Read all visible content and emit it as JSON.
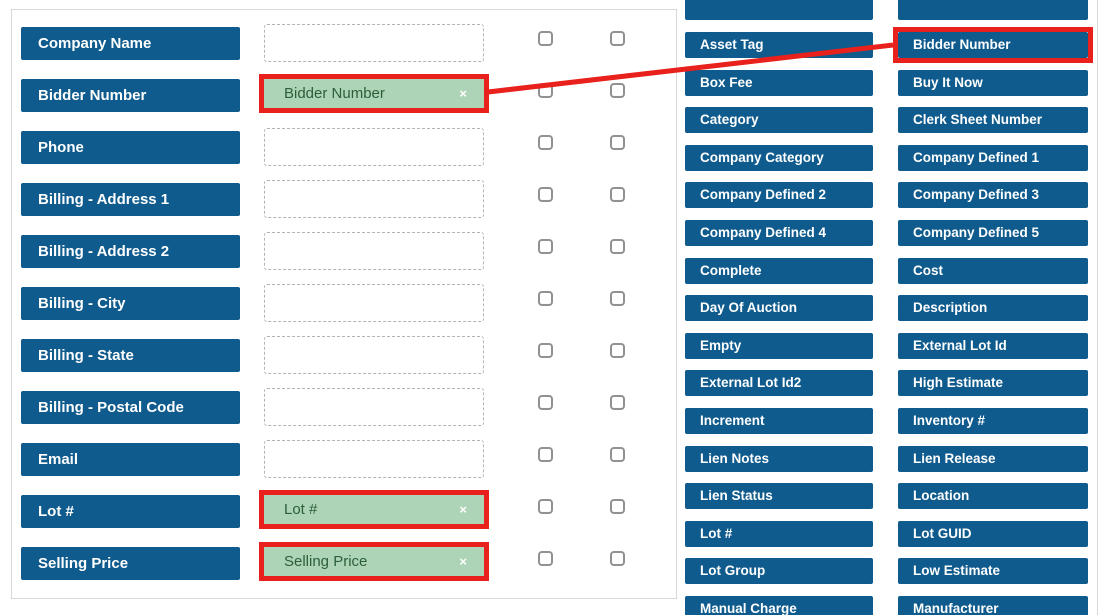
{
  "colors": {
    "field_blue": "#0f5b8d",
    "highlight_red": "#e8211c",
    "mapped_green_bg": "#aed4b7",
    "mapped_green_text": "#2c5e3a",
    "chip_text": "#ffffff",
    "panel_border": "#d9d9d9",
    "dashed_border": "#b3b3b3",
    "checkbox_border": "#919191",
    "page_bg": "#ffffff"
  },
  "icons": {
    "remove": "×"
  },
  "left_panel": {
    "rows": [
      {
        "label": "Company Name",
        "mapped": null,
        "highlighted": false,
        "checkboxes": [
          false,
          false
        ]
      },
      {
        "label": "Bidder Number",
        "mapped": "Bidder Number",
        "highlighted": true,
        "checkboxes": [
          false,
          false
        ]
      },
      {
        "label": "Phone",
        "mapped": null,
        "highlighted": false,
        "checkboxes": [
          false,
          false
        ]
      },
      {
        "label": "Billing - Address 1",
        "mapped": null,
        "highlighted": false,
        "checkboxes": [
          false,
          false
        ]
      },
      {
        "label": "Billing - Address 2",
        "mapped": null,
        "highlighted": false,
        "checkboxes": [
          false,
          false
        ]
      },
      {
        "label": "Billing - City",
        "mapped": null,
        "highlighted": false,
        "checkboxes": [
          false,
          false
        ]
      },
      {
        "label": "Billing - State",
        "mapped": null,
        "highlighted": false,
        "checkboxes": [
          false,
          false
        ]
      },
      {
        "label": "Billing - Postal Code",
        "mapped": null,
        "highlighted": false,
        "checkboxes": [
          false,
          false
        ]
      },
      {
        "label": "Email",
        "mapped": null,
        "highlighted": false,
        "checkboxes": [
          false,
          false
        ]
      },
      {
        "label": "Lot #",
        "mapped": "Lot #",
        "highlighted": true,
        "checkboxes": [
          false,
          false
        ]
      },
      {
        "label": "Selling Price",
        "mapped": "Selling Price",
        "highlighted": true,
        "checkboxes": [
          false,
          false
        ]
      }
    ]
  },
  "available_fields": {
    "rows": [
      {
        "left": "",
        "right": "",
        "right_highlighted": false
      },
      {
        "left": "Asset Tag",
        "right": "Bidder Number",
        "right_highlighted": true
      },
      {
        "left": "Box Fee",
        "right": "Buy It Now",
        "right_highlighted": false
      },
      {
        "left": "Category",
        "right": "Clerk Sheet Number",
        "right_highlighted": false
      },
      {
        "left": "Company Category",
        "right": "Company Defined 1",
        "right_highlighted": false
      },
      {
        "left": "Company Defined 2",
        "right": "Company Defined 3",
        "right_highlighted": false
      },
      {
        "left": "Company Defined 4",
        "right": "Company Defined 5",
        "right_highlighted": false
      },
      {
        "left": "Complete",
        "right": "Cost",
        "right_highlighted": false
      },
      {
        "left": "Day Of Auction",
        "right": "Description",
        "right_highlighted": false
      },
      {
        "left": "Empty",
        "right": "External Lot Id",
        "right_highlighted": false
      },
      {
        "left": "External Lot Id2",
        "right": "High Estimate",
        "right_highlighted": false
      },
      {
        "left": "Increment",
        "right": "Inventory #",
        "right_highlighted": false
      },
      {
        "left": "Lien Notes",
        "right": "Lien Release",
        "right_highlighted": false
      },
      {
        "left": "Lien Status",
        "right": "Location",
        "right_highlighted": false
      },
      {
        "left": "Lot #",
        "right": "Lot GUID",
        "right_highlighted": false
      },
      {
        "left": "Lot Group",
        "right": "Low Estimate",
        "right_highlighted": false
      },
      {
        "left": "Manual Charge",
        "right": "Manufacturer",
        "right_highlighted": false
      }
    ]
  },
  "connector": {
    "from": "Bidder Number",
    "to": "Bidder Number"
  }
}
